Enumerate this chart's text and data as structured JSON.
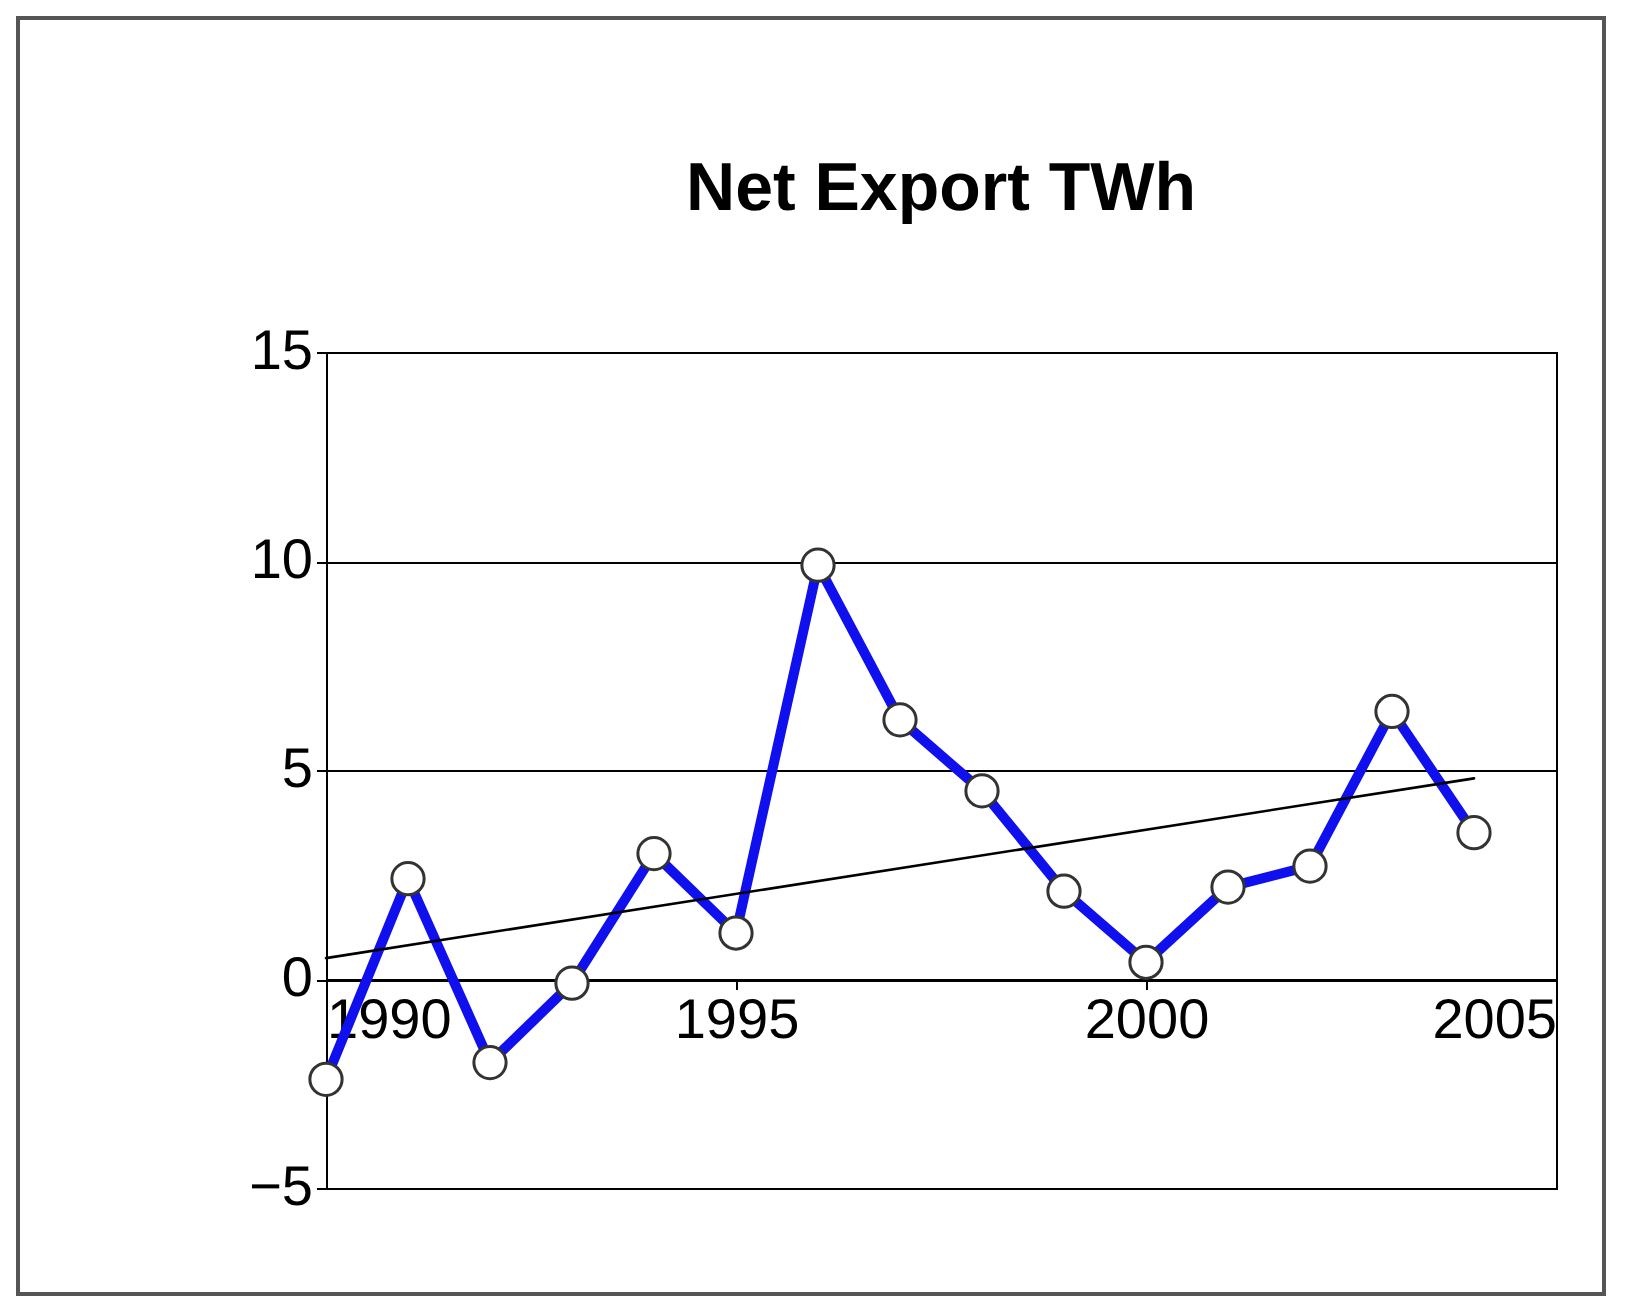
{
  "chart_data": {
    "type": "line",
    "title": "Net Export TWh",
    "x": [
      1990,
      1991,
      1992,
      1993,
      1994,
      1995,
      1996,
      1997,
      1998,
      1999,
      2000,
      2001,
      2002,
      2003,
      2004
    ],
    "series": [
      {
        "color": "#1010ee",
        "values": [
          -2.4,
          2.4,
          -2.0,
          -0.1,
          3.0,
          1.1,
          9.9,
          6.2,
          4.5,
          2.1,
          0.4,
          2.2,
          2.7,
          6.4,
          3.5
        ],
        "marker": "circle",
        "line_style": "solid"
      },
      {
        "type": "line",
        "color": "#000000",
        "x": [
          1990,
          2004
        ],
        "values": [
          0.5,
          4.8
        ],
        "marker": "none",
        "line_style": "solid"
      }
    ],
    "xlim": [
      1990,
      2005
    ],
    "xticks": [
      1990,
      1995,
      2000,
      2005
    ],
    "ylim": [
      -5,
      15
    ],
    "yticks": [
      -5,
      0,
      5,
      10,
      15
    ],
    "grid": "y"
  }
}
